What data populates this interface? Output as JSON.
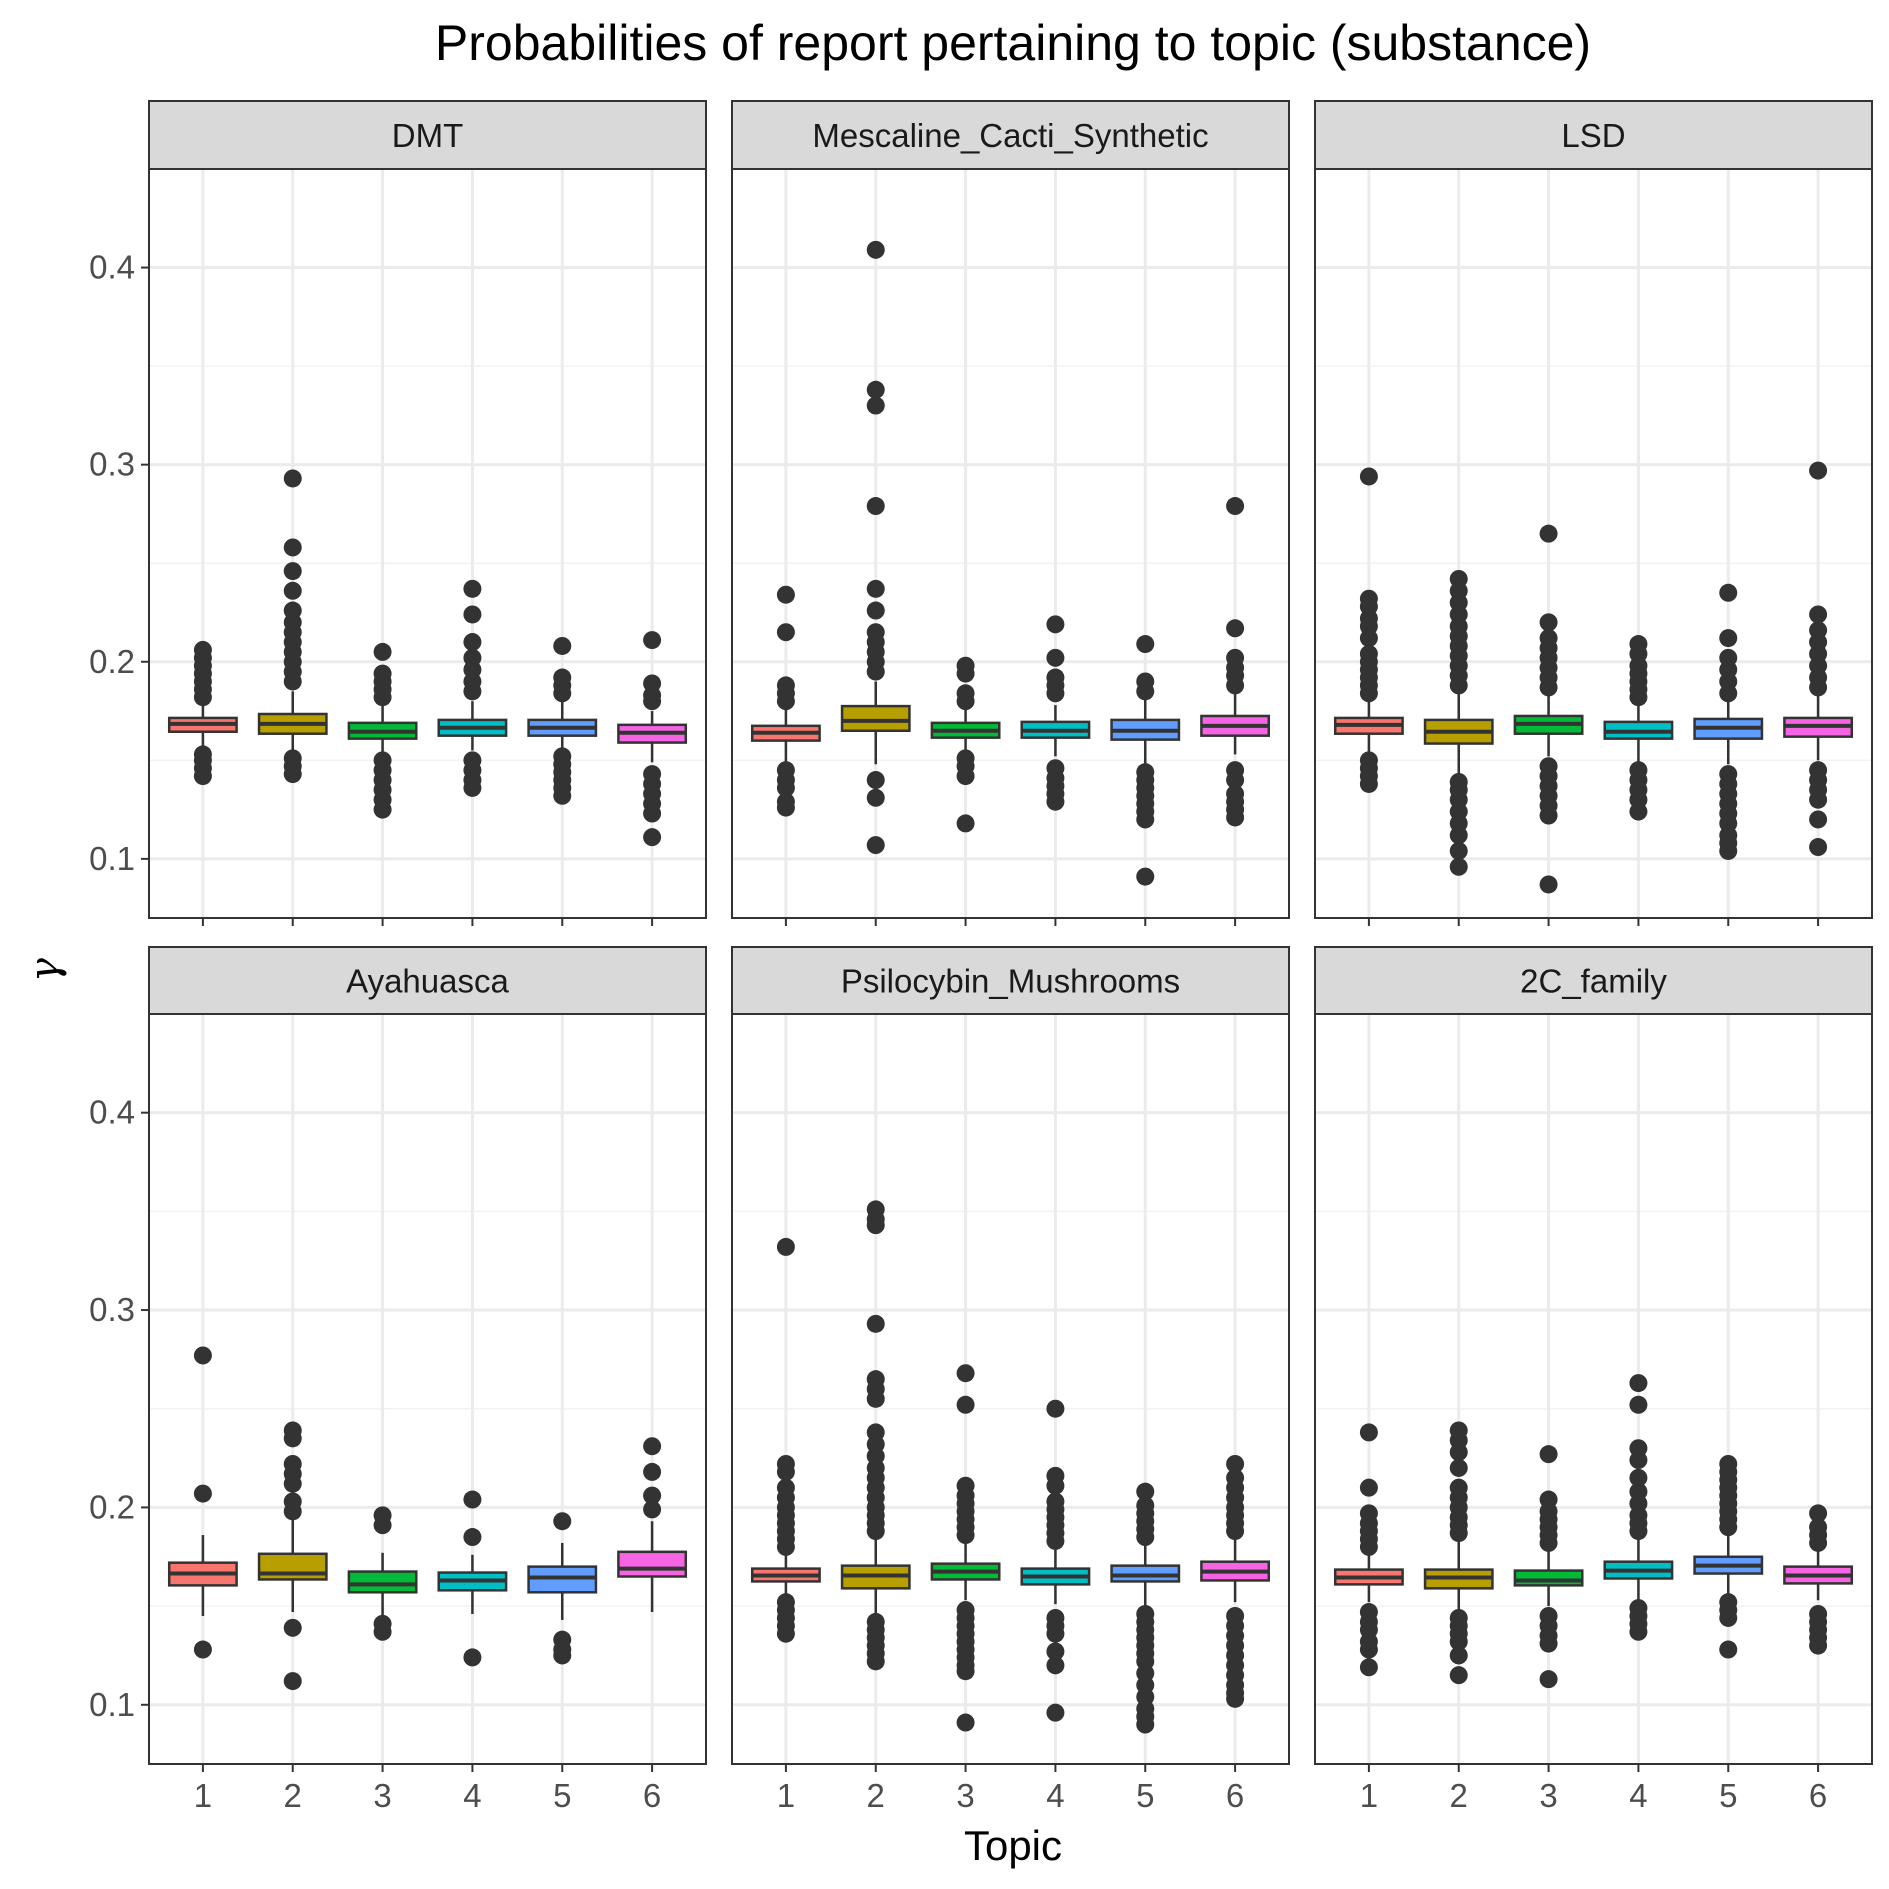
{
  "chart_data": {
    "type": "box",
    "title": "Probabilities of report pertaining to topic (substance)",
    "xlabel": "Topic",
    "ylabel": "γ",
    "x_categories": [
      "1",
      "2",
      "3",
      "4",
      "5",
      "6"
    ],
    "y_ticks": [
      "0.1",
      "0.2",
      "0.3",
      "0.4"
    ],
    "ylim": [
      0.07,
      0.45
    ],
    "grid": true,
    "facet_layout": "2 rows x 3 columns",
    "legend": "none",
    "topic_colors": [
      "#F8766D",
      "#B79F00",
      "#00BA38",
      "#00BFC4",
      "#619CFF",
      "#F564E3"
    ],
    "panels": [
      {
        "name": "DMT",
        "boxes": [
          {
            "topic": "1",
            "q1": 0.1645,
            "median": 0.1685,
            "q3": 0.1715,
            "whisker_low": 0.157,
            "whisker_high": 0.1785,
            "outliers": [
              0.142,
              0.146,
              0.15,
              0.153,
              0.182,
              0.186,
              0.19,
              0.194,
              0.198,
              0.202,
              0.206
            ]
          },
          {
            "topic": "2",
            "q1": 0.1635,
            "median": 0.1685,
            "q3": 0.1735,
            "whisker_low": 0.153,
            "whisker_high": 0.185,
            "outliers": [
              0.143,
              0.147,
              0.151,
              0.19,
              0.195,
              0.2,
              0.205,
              0.21,
              0.215,
              0.22,
              0.226,
              0.236,
              0.246,
              0.258,
              0.293
            ]
          },
          {
            "topic": "3",
            "q1": 0.161,
            "median": 0.1645,
            "q3": 0.169,
            "whisker_low": 0.153,
            "whisker_high": 0.178,
            "outliers": [
              0.125,
              0.13,
              0.135,
              0.14,
              0.145,
              0.15,
              0.182,
              0.186,
              0.19,
              0.194,
              0.205
            ]
          },
          {
            "topic": "4",
            "q1": 0.1625,
            "median": 0.1665,
            "q3": 0.1705,
            "whisker_low": 0.155,
            "whisker_high": 0.18,
            "outliers": [
              0.136,
              0.14,
              0.145,
              0.15,
              0.185,
              0.19,
              0.196,
              0.202,
              0.21,
              0.224,
              0.237
            ]
          },
          {
            "topic": "5",
            "q1": 0.1625,
            "median": 0.1665,
            "q3": 0.1705,
            "whisker_low": 0.154,
            "whisker_high": 0.18,
            "outliers": [
              0.132,
              0.136,
              0.14,
              0.144,
              0.148,
              0.152,
              0.184,
              0.188,
              0.192,
              0.208
            ]
          },
          {
            "topic": "6",
            "q1": 0.159,
            "median": 0.164,
            "q3": 0.168,
            "whisker_low": 0.149,
            "whisker_high": 0.175,
            "outliers": [
              0.111,
              0.123,
              0.128,
              0.133,
              0.138,
              0.143,
              0.18,
              0.183,
              0.189,
              0.211
            ]
          }
        ]
      },
      {
        "name": "Mescaline_Cacti_Synthetic",
        "boxes": [
          {
            "topic": "1",
            "q1": 0.16,
            "median": 0.164,
            "q3": 0.1675,
            "whisker_low": 0.149,
            "whisker_high": 0.176,
            "outliers": [
              0.126,
              0.129,
              0.136,
              0.14,
              0.145,
              0.18,
              0.184,
              0.188,
              0.215,
              0.234
            ]
          },
          {
            "topic": "2",
            "q1": 0.165,
            "median": 0.17,
            "q3": 0.1775,
            "whisker_low": 0.148,
            "whisker_high": 0.19,
            "outliers": [
              0.107,
              0.131,
              0.14,
              0.195,
              0.2,
              0.205,
              0.21,
              0.215,
              0.226,
              0.237,
              0.279,
              0.33,
              0.338,
              0.409
            ]
          },
          {
            "topic": "3",
            "q1": 0.1615,
            "median": 0.165,
            "q3": 0.169,
            "whisker_low": 0.153,
            "whisker_high": 0.177,
            "outliers": [
              0.118,
              0.142,
              0.147,
              0.151,
              0.18,
              0.184,
              0.194,
              0.198
            ]
          },
          {
            "topic": "4",
            "q1": 0.1615,
            "median": 0.165,
            "q3": 0.1695,
            "whisker_low": 0.152,
            "whisker_high": 0.178,
            "outliers": [
              0.129,
              0.133,
              0.137,
              0.141,
              0.146,
              0.184,
              0.188,
              0.192,
              0.202,
              0.219
            ]
          },
          {
            "topic": "5",
            "q1": 0.1605,
            "median": 0.165,
            "q3": 0.1705,
            "whisker_low": 0.148,
            "whisker_high": 0.182,
            "outliers": [
              0.091,
              0.12,
              0.124,
              0.128,
              0.132,
              0.136,
              0.14,
              0.144,
              0.185,
              0.19,
              0.209
            ]
          },
          {
            "topic": "6",
            "q1": 0.1625,
            "median": 0.1675,
            "q3": 0.1725,
            "whisker_low": 0.153,
            "whisker_high": 0.184,
            "outliers": [
              0.121,
              0.125,
              0.129,
              0.133,
              0.14,
              0.145,
              0.188,
              0.193,
              0.197,
              0.202,
              0.217,
              0.279
            ]
          }
        ]
      },
      {
        "name": "LSD",
        "boxes": [
          {
            "topic": "1",
            "q1": 0.1635,
            "median": 0.168,
            "q3": 0.1715,
            "whisker_low": 0.154,
            "whisker_high": 0.18,
            "outliers": [
              0.138,
              0.142,
              0.146,
              0.15,
              0.184,
              0.188,
              0.192,
              0.196,
              0.2,
              0.204,
              0.212,
              0.218,
              0.222,
              0.228,
              0.232,
              0.294
            ]
          },
          {
            "topic": "2",
            "q1": 0.1585,
            "median": 0.1645,
            "q3": 0.1705,
            "whisker_low": 0.142,
            "whisker_high": 0.184,
            "outliers": [
              0.096,
              0.104,
              0.112,
              0.118,
              0.124,
              0.13,
              0.135,
              0.139,
              0.188,
              0.193,
              0.198,
              0.203,
              0.208,
              0.213,
              0.218,
              0.224,
              0.23,
              0.236,
              0.242
            ]
          },
          {
            "topic": "3",
            "q1": 0.1635,
            "median": 0.1685,
            "q3": 0.1725,
            "whisker_low": 0.152,
            "whisker_high": 0.183,
            "outliers": [
              0.087,
              0.122,
              0.127,
              0.132,
              0.137,
              0.142,
              0.147,
              0.187,
              0.192,
              0.197,
              0.202,
              0.207,
              0.212,
              0.22,
              0.265
            ]
          },
          {
            "topic": "4",
            "q1": 0.161,
            "median": 0.1645,
            "q3": 0.1695,
            "whisker_low": 0.149,
            "whisker_high": 0.178,
            "outliers": [
              0.124,
              0.13,
              0.135,
              0.14,
              0.145,
              0.182,
              0.186,
              0.19,
              0.194,
              0.198,
              0.204,
              0.209
            ]
          },
          {
            "topic": "5",
            "q1": 0.161,
            "median": 0.1665,
            "q3": 0.171,
            "whisker_low": 0.148,
            "whisker_high": 0.18,
            "outliers": [
              0.104,
              0.108,
              0.112,
              0.118,
              0.123,
              0.128,
              0.133,
              0.138,
              0.143,
              0.184,
              0.19,
              0.196,
              0.202,
              0.212,
              0.235
            ]
          },
          {
            "topic": "6",
            "q1": 0.162,
            "median": 0.1675,
            "q3": 0.1715,
            "whisker_low": 0.15,
            "whisker_high": 0.183,
            "outliers": [
              0.106,
              0.12,
              0.13,
              0.135,
              0.14,
              0.145,
              0.187,
              0.192,
              0.198,
              0.204,
              0.21,
              0.216,
              0.224,
              0.297
            ]
          }
        ]
      },
      {
        "name": "Ayahuasca",
        "boxes": [
          {
            "topic": "1",
            "q1": 0.1605,
            "median": 0.1665,
            "q3": 0.172,
            "whisker_low": 0.145,
            "whisker_high": 0.186,
            "outliers": [
              0.128,
              0.207,
              0.277
            ]
          },
          {
            "topic": "2",
            "q1": 0.1635,
            "median": 0.1665,
            "q3": 0.1765,
            "whisker_low": 0.147,
            "whisker_high": 0.194,
            "outliers": [
              0.112,
              0.139,
              0.198,
              0.203,
              0.212,
              0.217,
              0.222,
              0.235,
              0.239
            ]
          },
          {
            "topic": "3",
            "q1": 0.157,
            "median": 0.161,
            "q3": 0.1675,
            "whisker_low": 0.143,
            "whisker_high": 0.177,
            "outliers": [
              0.137,
              0.141,
              0.191,
              0.196
            ]
          },
          {
            "topic": "4",
            "q1": 0.158,
            "median": 0.163,
            "q3": 0.167,
            "whisker_low": 0.146,
            "whisker_high": 0.176,
            "outliers": [
              0.124,
              0.185,
              0.204
            ]
          },
          {
            "topic": "5",
            "q1": 0.157,
            "median": 0.1645,
            "q3": 0.17,
            "whisker_low": 0.143,
            "whisker_high": 0.182,
            "outliers": [
              0.125,
              0.128,
              0.133,
              0.193
            ]
          },
          {
            "topic": "6",
            "q1": 0.165,
            "median": 0.169,
            "q3": 0.1775,
            "whisker_low": 0.147,
            "whisker_high": 0.193,
            "outliers": [
              0.199,
              0.206,
              0.218,
              0.231
            ]
          }
        ]
      },
      {
        "name": "Psilocybin_Mushrooms",
        "boxes": [
          {
            "topic": "1",
            "q1": 0.1625,
            "median": 0.1655,
            "q3": 0.169,
            "whisker_low": 0.155,
            "whisker_high": 0.177,
            "outliers": [
              0.136,
              0.14,
              0.144,
              0.148,
              0.152,
              0.18,
              0.184,
              0.188,
              0.192,
              0.196,
              0.2,
              0.205,
              0.21,
              0.218,
              0.222,
              0.332
            ]
          },
          {
            "topic": "2",
            "q1": 0.159,
            "median": 0.1655,
            "q3": 0.1705,
            "whisker_low": 0.144,
            "whisker_high": 0.185,
            "outliers": [
              0.122,
              0.126,
              0.13,
              0.134,
              0.138,
              0.142,
              0.188,
              0.192,
              0.196,
              0.2,
              0.205,
              0.21,
              0.215,
              0.22,
              0.226,
              0.232,
              0.238,
              0.255,
              0.26,
              0.265,
              0.293,
              0.343,
              0.346,
              0.351
            ]
          },
          {
            "topic": "3",
            "q1": 0.1635,
            "median": 0.1675,
            "q3": 0.1715,
            "whisker_low": 0.153,
            "whisker_high": 0.182,
            "outliers": [
              0.091,
              0.117,
              0.12,
              0.124,
              0.128,
              0.132,
              0.136,
              0.14,
              0.144,
              0.148,
              0.186,
              0.19,
              0.194,
              0.198,
              0.202,
              0.206,
              0.211,
              0.252,
              0.268
            ]
          },
          {
            "topic": "4",
            "q1": 0.161,
            "median": 0.165,
            "q3": 0.169,
            "whisker_low": 0.151,
            "whisker_high": 0.179,
            "outliers": [
              0.096,
              0.12,
              0.127,
              0.136,
              0.14,
              0.144,
              0.183,
              0.187,
              0.191,
              0.195,
              0.199,
              0.203,
              0.211,
              0.216,
              0.25
            ]
          },
          {
            "topic": "5",
            "q1": 0.1625,
            "median": 0.1655,
            "q3": 0.1705,
            "whisker_low": 0.15,
            "whisker_high": 0.181,
            "outliers": [
              0.09,
              0.094,
              0.098,
              0.104,
              0.11,
              0.116,
              0.122,
              0.126,
              0.13,
              0.134,
              0.138,
              0.142,
              0.146,
              0.185,
              0.189,
              0.193,
              0.197,
              0.201,
              0.208
            ]
          },
          {
            "topic": "6",
            "q1": 0.163,
            "median": 0.1675,
            "q3": 0.1725,
            "whisker_low": 0.152,
            "whisker_high": 0.184,
            "outliers": [
              0.103,
              0.106,
              0.11,
              0.115,
              0.12,
              0.125,
              0.13,
              0.135,
              0.14,
              0.145,
              0.188,
              0.192,
              0.196,
              0.2,
              0.205,
              0.21,
              0.215,
              0.222
            ]
          }
        ]
      },
      {
        "name": "2C_family",
        "boxes": [
          {
            "topic": "1",
            "q1": 0.161,
            "median": 0.1645,
            "q3": 0.1685,
            "whisker_low": 0.152,
            "whisker_high": 0.177,
            "outliers": [
              0.119,
              0.128,
              0.132,
              0.138,
              0.142,
              0.147,
              0.18,
              0.184,
              0.188,
              0.192,
              0.197,
              0.21,
              0.238
            ]
          },
          {
            "topic": "2",
            "q1": 0.159,
            "median": 0.1645,
            "q3": 0.1685,
            "whisker_low": 0.148,
            "whisker_high": 0.183,
            "outliers": [
              0.115,
              0.125,
              0.132,
              0.136,
              0.14,
              0.144,
              0.187,
              0.191,
              0.195,
              0.2,
              0.205,
              0.21,
              0.22,
              0.228,
              0.234,
              0.239
            ]
          },
          {
            "topic": "3",
            "q1": 0.1605,
            "median": 0.163,
            "q3": 0.168,
            "whisker_low": 0.15,
            "whisker_high": 0.178,
            "outliers": [
              0.113,
              0.131,
              0.135,
              0.14,
              0.145,
              0.182,
              0.186,
              0.19,
              0.194,
              0.198,
              0.204,
              0.227
            ]
          },
          {
            "topic": "4",
            "q1": 0.164,
            "median": 0.168,
            "q3": 0.1725,
            "whisker_low": 0.152,
            "whisker_high": 0.185,
            "outliers": [
              0.137,
              0.141,
              0.145,
              0.149,
              0.188,
              0.192,
              0.196,
              0.202,
              0.208,
              0.215,
              0.224,
              0.23,
              0.252,
              0.263
            ]
          },
          {
            "topic": "5",
            "q1": 0.1665,
            "median": 0.1705,
            "q3": 0.175,
            "whisker_low": 0.156,
            "whisker_high": 0.186,
            "outliers": [
              0.128,
              0.144,
              0.148,
              0.152,
              0.19,
              0.194,
              0.198,
              0.202,
              0.206,
              0.21,
              0.214,
              0.218,
              0.222
            ]
          },
          {
            "topic": "6",
            "q1": 0.1615,
            "median": 0.1655,
            "q3": 0.17,
            "whisker_low": 0.153,
            "whisker_high": 0.178,
            "outliers": [
              0.13,
              0.134,
              0.138,
              0.142,
              0.146,
              0.182,
              0.186,
              0.19,
              0.197
            ]
          }
        ]
      }
    ]
  }
}
